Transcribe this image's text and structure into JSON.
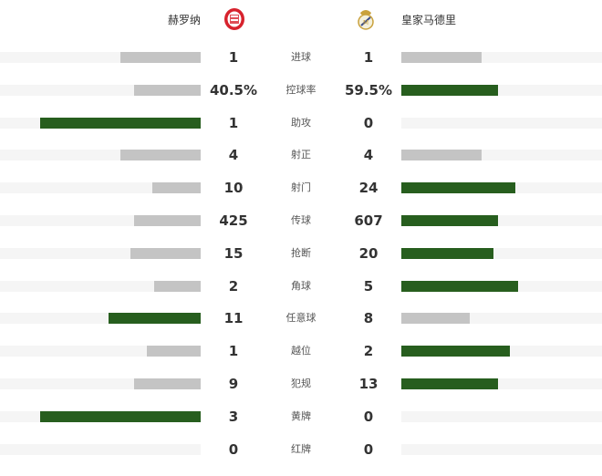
{
  "teams": {
    "home": {
      "name": "赫罗纳",
      "logo_icon": "girona-crest"
    },
    "away": {
      "name": "皇家马德里",
      "logo_icon": "real-madrid-crest"
    }
  },
  "colors": {
    "leader": "#275e1e",
    "other": "#c4c4c4",
    "track": "#f5f5f5"
  },
  "stats": [
    {
      "label": "进球",
      "home": "1",
      "away": "1",
      "home_bar_pct": 40,
      "away_bar_pct": 40,
      "leader": "none"
    },
    {
      "label": "控球率",
      "home": "40.5%",
      "away": "59.5%",
      "home_bar_pct": 33,
      "away_bar_pct": 48,
      "leader": "away"
    },
    {
      "label": "助攻",
      "home": "1",
      "away": "0",
      "home_bar_pct": 80,
      "away_bar_pct": 0,
      "leader": "home"
    },
    {
      "label": "射正",
      "home": "4",
      "away": "4",
      "home_bar_pct": 40,
      "away_bar_pct": 40,
      "leader": "none"
    },
    {
      "label": "射门",
      "home": "10",
      "away": "24",
      "home_bar_pct": 24,
      "away_bar_pct": 57,
      "leader": "away"
    },
    {
      "label": "传球",
      "home": "425",
      "away": "607",
      "home_bar_pct": 33,
      "away_bar_pct": 48,
      "leader": "away"
    },
    {
      "label": "抢断",
      "home": "15",
      "away": "20",
      "home_bar_pct": 35,
      "away_bar_pct": 46,
      "leader": "away"
    },
    {
      "label": "角球",
      "home": "2",
      "away": "5",
      "home_bar_pct": 23,
      "away_bar_pct": 58,
      "leader": "away"
    },
    {
      "label": "任意球",
      "home": "11",
      "away": "8",
      "home_bar_pct": 46,
      "away_bar_pct": 34,
      "leader": "home"
    },
    {
      "label": "越位",
      "home": "1",
      "away": "2",
      "home_bar_pct": 27,
      "away_bar_pct": 54,
      "leader": "away"
    },
    {
      "label": "犯规",
      "home": "9",
      "away": "13",
      "home_bar_pct": 33,
      "away_bar_pct": 48,
      "leader": "away"
    },
    {
      "label": "黄牌",
      "home": "3",
      "away": "0",
      "home_bar_pct": 80,
      "away_bar_pct": 0,
      "leader": "home"
    },
    {
      "label": "红牌",
      "home": "0",
      "away": "0",
      "home_bar_pct": 0,
      "away_bar_pct": 0,
      "leader": "none"
    }
  ]
}
